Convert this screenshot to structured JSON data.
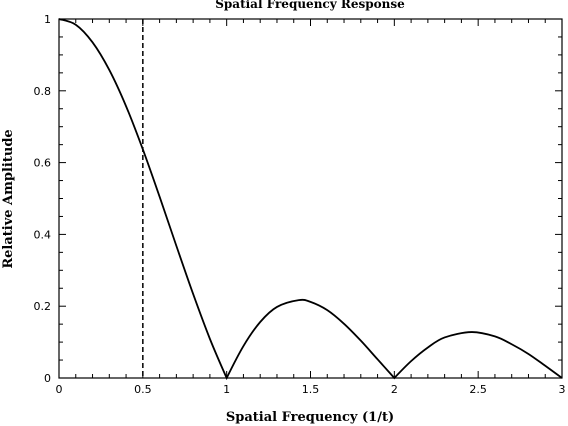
{
  "chart_data": {
    "type": "line",
    "title": "Spatial Frequency Response",
    "xlabel": "Spatial Frequency (1/t)",
    "ylabel": "Relative Amplitude",
    "xlim": [
      0,
      3
    ],
    "ylim": [
      0,
      1
    ],
    "x_ticks": [
      0,
      0.5,
      1,
      1.5,
      2,
      2.5,
      3
    ],
    "x_tick_labels": [
      "0",
      "0.5",
      "1",
      "1.5",
      "2",
      "2.5",
      "3"
    ],
    "y_ticks": [
      0,
      0.2,
      0.4,
      0.6,
      0.8,
      1
    ],
    "y_tick_labels": [
      "0",
      "0.2",
      "0.4",
      "0.6",
      "0.8",
      "1"
    ],
    "grid": false,
    "series": [
      {
        "style": "solid",
        "x": [
          0,
          0.1,
          0.2,
          0.3,
          0.4,
          0.5,
          0.6,
          0.7,
          0.8,
          0.9,
          1.0,
          1.1,
          1.2,
          1.3,
          1.43,
          1.5,
          1.6,
          1.7,
          1.8,
          1.9,
          2.0,
          2.1,
          2.2,
          2.3,
          2.46,
          2.6,
          2.7,
          2.8,
          2.9,
          3.0
        ],
        "y": [
          1.0,
          0.984,
          0.935,
          0.858,
          0.757,
          0.637,
          0.505,
          0.368,
          0.234,
          0.109,
          0.0,
          0.089,
          0.156,
          0.198,
          0.217,
          0.212,
          0.189,
          0.151,
          0.104,
          0.052,
          0.0,
          0.047,
          0.085,
          0.113,
          0.128,
          0.116,
          0.094,
          0.067,
          0.034,
          0.0
        ]
      }
    ],
    "reference_lines": [
      {
        "orientation": "vertical",
        "x": 0.5,
        "style": "dashed"
      }
    ]
  }
}
